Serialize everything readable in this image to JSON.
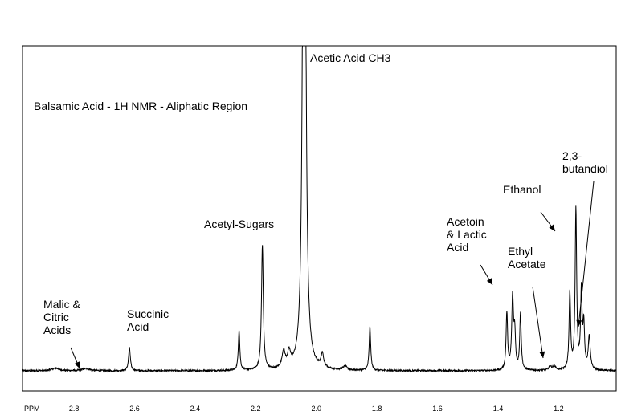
{
  "chart_data": {
    "type": "line",
    "title": "Balsamic Acid - 1H NMR -  Aliphatic Region",
    "xlabel": "PPM",
    "ylabel": "",
    "x_reversed": true,
    "xlim": [
      2.97,
      1.01
    ],
    "ylim": [
      0,
      100
    ],
    "x_ticks": [
      "2.8",
      "2.6",
      "2.4",
      "2.2",
      "2.0",
      "1.8",
      "1.6",
      "1.4",
      "1.2"
    ],
    "grid": false,
    "series": [
      {
        "peaks": [
          {
            "x": 2.617,
            "h": 7.2,
            "w": 0.0035
          },
          {
            "x": 2.255,
            "h": 12.6,
            "w": 0.003
          },
          {
            "x": 2.178,
            "h": 39.0,
            "w": 0.0035
          },
          {
            "x": 2.108,
            "h": 5.2,
            "w": 0.006
          },
          {
            "x": 2.09,
            "h": 4.3,
            "w": 0.006
          },
          {
            "x": 2.04,
            "h": 300.0,
            "w": 0.0045
          },
          {
            "x": 1.98,
            "h": 4.2,
            "w": 0.005
          },
          {
            "x": 1.905,
            "h": 1.2,
            "w": 0.008
          },
          {
            "x": 1.823,
            "h": 13.7,
            "w": 0.003
          },
          {
            "x": 1.371,
            "h": 17.8,
            "w": 0.003
          },
          {
            "x": 1.352,
            "h": 22.5,
            "w": 0.0035
          },
          {
            "x": 1.345,
            "h": 10.5,
            "w": 0.003
          },
          {
            "x": 1.326,
            "h": 17.6,
            "w": 0.003
          },
          {
            "x": 1.228,
            "h": 1.2,
            "w": 0.006
          },
          {
            "x": 1.214,
            "h": 1.2,
            "w": 0.006
          },
          {
            "x": 1.163,
            "h": 24.2,
            "w": 0.003
          },
          {
            "x": 1.143,
            "h": 50.0,
            "w": 0.003
          },
          {
            "x": 1.125,
            "h": 24.2,
            "w": 0.003
          },
          {
            "x": 1.117,
            "h": 13.5,
            "w": 0.003
          },
          {
            "x": 1.099,
            "h": 10.3,
            "w": 0.004
          },
          {
            "x": 2.86,
            "h": 0.8,
            "w": 0.015
          },
          {
            "x": 2.76,
            "h": 0.7,
            "w": 0.015
          }
        ]
      }
    ],
    "annotations": [
      {
        "lines": [
          "Malic &",
          "Citric",
          "Acids"
        ]
      },
      {
        "lines": [
          "Succinic",
          "Acid"
        ]
      },
      {
        "lines": [
          "Acetyl-Sugars"
        ]
      },
      {
        "lines": [
          "Acetic Acid CH3"
        ]
      },
      {
        "lines": [
          "Acetoin",
          "& Lactic",
          "Acid"
        ]
      },
      {
        "lines": [
          "Ethanol"
        ]
      },
      {
        "lines": [
          "Ethyl",
          "Acetate"
        ]
      },
      {
        "lines": [
          "2,3-",
          "butandiol"
        ]
      }
    ]
  },
  "colors": {
    "trace": "#000000",
    "frame": "#000000",
    "background": "#ffffff"
  }
}
